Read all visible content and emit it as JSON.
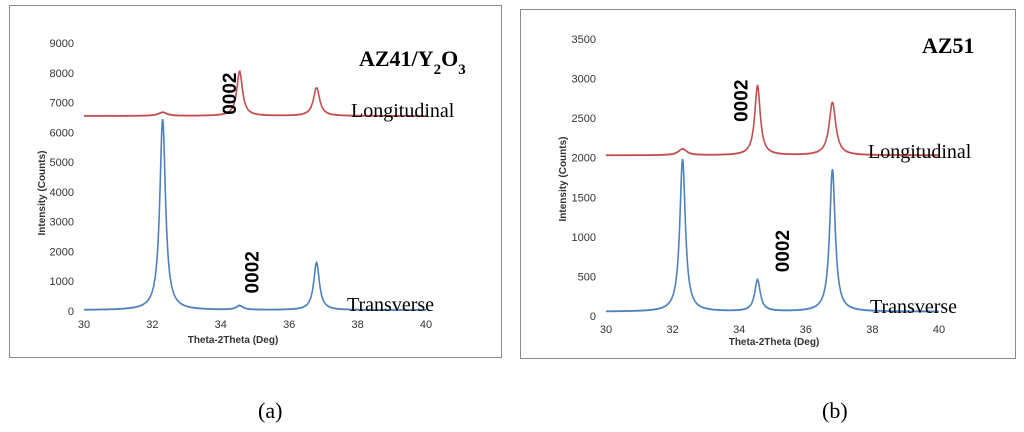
{
  "chart_data": [
    {
      "type": "line",
      "panel_caption": "(a)",
      "title_main": "AZ41/Y",
      "title_sub1": "2",
      "title_mid": "O",
      "title_sub2": "3",
      "xlabel": "Theta-2Theta (Deg)",
      "ylabel": "Intensity (Counts)",
      "xlim": [
        30,
        40
      ],
      "ylim": [
        0,
        9000
      ],
      "xticks": [
        30,
        32,
        34,
        36,
        38,
        40
      ],
      "yticks": [
        0,
        1000,
        2000,
        3000,
        4000,
        5000,
        6000,
        7000,
        8000,
        9000
      ],
      "series": [
        {
          "name": "Longitudinal",
          "color": "#c0504d",
          "baseline": 6550,
          "peaks": [
            {
              "x": 32.3,
              "height": 120,
              "width": 0.15
            },
            {
              "x": 34.55,
              "height": 1500,
              "width": 0.1
            },
            {
              "x": 36.8,
              "height": 950,
              "width": 0.11
            }
          ]
        },
        {
          "name": "Transverse",
          "color": "#4f81bd",
          "baseline": 30,
          "peaks": [
            {
              "x": 32.3,
              "height": 6420,
              "width": 0.1
            },
            {
              "x": 34.55,
              "height": 140,
              "width": 0.12
            },
            {
              "x": 36.8,
              "height": 1600,
              "width": 0.1
            }
          ]
        }
      ],
      "annotations": [
        {
          "text": "0002",
          "x": 34.45,
          "y": 7300
        },
        {
          "text": "0002",
          "x": 35.1,
          "y": 1300
        }
      ]
    },
    {
      "type": "line",
      "panel_caption": "(b)",
      "title_main": "AZ51",
      "xlabel": "Theta-2Theta (Deg)",
      "ylabel": "Intensity (Counts)",
      "xlim": [
        30,
        40
      ],
      "ylim": [
        0,
        3500
      ],
      "xticks": [
        30,
        32,
        34,
        36,
        38,
        40
      ],
      "yticks": [
        0,
        500,
        1000,
        1500,
        2000,
        2500,
        3000,
        3500
      ],
      "series": [
        {
          "name": "Longitudinal",
          "color": "#c0504d",
          "baseline": 2030,
          "peaks": [
            {
              "x": 32.3,
              "height": 80,
              "width": 0.15
            },
            {
              "x": 34.55,
              "height": 880,
              "width": 0.1
            },
            {
              "x": 36.8,
              "height": 670,
              "width": 0.12
            }
          ]
        },
        {
          "name": "Transverse",
          "color": "#4f81bd",
          "baseline": 55,
          "peaks": [
            {
              "x": 32.3,
              "height": 1930,
              "width": 0.1
            },
            {
              "x": 34.55,
              "height": 400,
              "width": 0.1
            },
            {
              "x": 36.8,
              "height": 1800,
              "width": 0.1
            }
          ]
        }
      ],
      "annotations": [
        {
          "text": "0002",
          "x": 34.25,
          "y": 2720
        },
        {
          "text": "0002",
          "x": 35.5,
          "y": 820
        }
      ]
    }
  ]
}
